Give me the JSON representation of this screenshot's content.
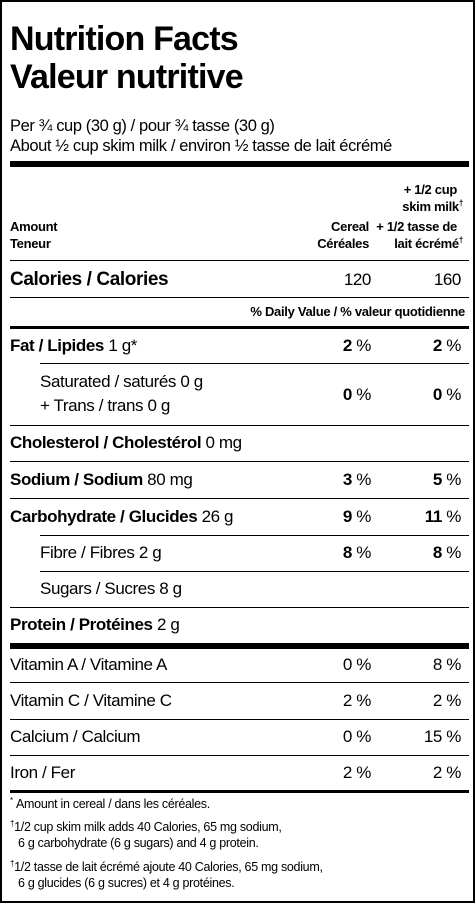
{
  "title_en": "Nutrition Facts",
  "title_fr": "Valeur nutritive",
  "serving_1": "Per ¾ cup (30 g) / pour ¾ tasse (30 g)",
  "serving_2": "About ½ cup skim milk / environ ½ tasse de lait écrémé",
  "header": {
    "amount_en": "Amount",
    "amount_fr": "Teneur",
    "col1_en": "Cereal",
    "col1_fr": "Céréales",
    "col2_line1": "+ 1/2 cup",
    "col2_line2": "skim milk",
    "col2_line3": "+ 1/2 tasse de",
    "col2_line4": "lait écrémé",
    "dagger": "†"
  },
  "calories": {
    "label": "Calories / Calories",
    "v1": "120",
    "v2": "160"
  },
  "daily_value_header": "% Daily Value / % valeur quotidienne",
  "fat": {
    "label": "Fat / Lipides",
    "amount": "1 g*",
    "v1": "2",
    "v2": "2"
  },
  "saturated": {
    "line1": "Saturated / saturés  0 g",
    "line2": "+ Trans / trans  0 g",
    "v1": "0",
    "v2": "0"
  },
  "cholesterol": {
    "label": "Cholesterol / Cholestérol",
    "amount": "0 mg"
  },
  "sodium": {
    "label": "Sodium / Sodium",
    "amount": "80 mg",
    "v1": "3",
    "v2": "5"
  },
  "carbohydrate": {
    "label": "Carbohydrate / Glucides",
    "amount": "26 g",
    "v1": "9",
    "v2": "11"
  },
  "fibre": {
    "label": "Fibre / Fibres  2 g",
    "v1": "8",
    "v2": "8"
  },
  "sugars": {
    "label": "Sugars / Sucres  8 g"
  },
  "protein": {
    "label": "Protein / Protéines",
    "amount": "2 g"
  },
  "vitamin_a": {
    "label": "Vitamin A / Vitamine A",
    "v1": "0",
    "v2": "8"
  },
  "vitamin_c": {
    "label": "Vitamin C / Vitamine C",
    "v1": "2",
    "v2": "2"
  },
  "calcium": {
    "label": "Calcium / Calcium",
    "v1": "0",
    "v2": "15"
  },
  "iron": {
    "label": "Iron / Fer",
    "v1": "2",
    "v2": "2"
  },
  "percent_sign": " %",
  "footnotes": {
    "f1_mark": "*",
    "f1": "Amount in cereal / dans les céréales.",
    "f2_mark": "†",
    "f2_line1": "1/2 cup skim milk adds 40 Calories, 65 mg sodium,",
    "f2_line2": "6 g carbohydrate (6 g sugars) and 4 g protein.",
    "f3_mark": "†",
    "f3_line1": "1/2 tasse de lait écrémé ajoute 40 Calories, 65 mg sodium,",
    "f3_line2": "6 g glucides (6 g sucres) et 4 g protéines."
  }
}
